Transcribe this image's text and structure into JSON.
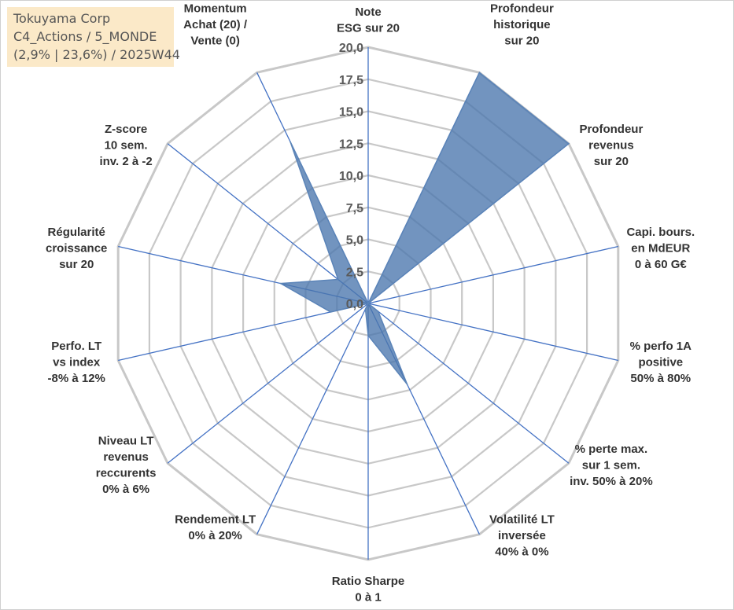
{
  "info": {
    "name": "Tokuyama Corp",
    "category": "C4_Actions / 5_MONDE",
    "stats": "(2,9% | 23,6%) / 2025W44"
  },
  "chart_data": {
    "type": "radar",
    "rmin": 0,
    "rmax": 20,
    "tick_step": 2.5,
    "tick_labels": [
      "0,0",
      "2,5",
      "5,0",
      "7,5",
      "10,0",
      "12,5",
      "15,0",
      "17,5",
      "20,0"
    ],
    "axes": [
      {
        "label": [
          "Note",
          "ESG sur 20"
        ],
        "value": 0
      },
      {
        "label": [
          "Profondeur",
          "historique",
          "sur 20"
        ],
        "value": 20
      },
      {
        "label": [
          "Profondeur",
          "revenus",
          "sur 20"
        ],
        "value": 20
      },
      {
        "label": [
          "Capi. bours.",
          "en MdEUR",
          "0 à 60 G€"
        ],
        "value": 0
      },
      {
        "label": [
          "% perfo 1A",
          "positive",
          "50% à 80%"
        ],
        "value": 0
      },
      {
        "label": [
          "% perte max.",
          "sur 1 sem.",
          "inv. 50% à 20%"
        ],
        "value": 1
      },
      {
        "label": [
          "Volatilité LT",
          "inversée",
          "40% à 0%"
        ],
        "value": 7
      },
      {
        "label": [
          "Ratio Sharpe",
          "0 à 1"
        ],
        "value": 2.5
      },
      {
        "label": [
          "Rendement LT",
          "0% à 20%"
        ],
        "value": 0.5
      },
      {
        "label": [
          "Niveau LT",
          "revenus",
          "reccurents",
          "0% à 6%"
        ],
        "value": 0
      },
      {
        "label": [
          "Perfo. LT",
          "vs index",
          "-8% à 12%"
        ],
        "value": 3
      },
      {
        "label": [
          "Régularité",
          "croissance",
          "sur 20"
        ],
        "value": 7
      },
      {
        "label": [
          "Z-score",
          "10 sem.",
          "inv. 2 à -2"
        ],
        "value": 3
      },
      {
        "label": [
          "Momentum",
          "Achat (20) /",
          "Vente (0)"
        ],
        "value": 14
      }
    ],
    "series_color": "#5b84b8",
    "series_fill": "#4a76ad",
    "grid_color": "#c8c8c8",
    "spoke_color": "#4472c4"
  }
}
